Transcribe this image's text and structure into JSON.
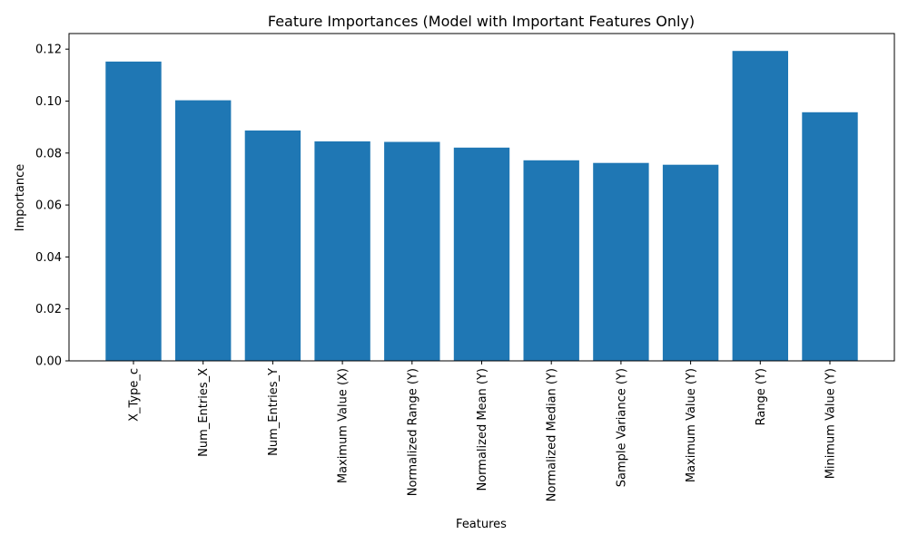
{
  "chart_data": {
    "type": "bar",
    "title": "Feature Importances (Model with Important Features Only)",
    "xlabel": "Features",
    "ylabel": "Importance",
    "categories": [
      "X_Type_c",
      "Num_Entries_X",
      "Num_Entries_Y",
      "Maximum Value (X)",
      "Normalized Range (Y)",
      "Normalized Mean (Y)",
      "Normalized Median (Y)",
      "Sample Variance (Y)",
      "Maximum Value (Y)",
      "Range (Y)",
      "Minimum Value (Y)"
    ],
    "values": [
      0.1152,
      0.1003,
      0.0887,
      0.0845,
      0.0843,
      0.0821,
      0.0772,
      0.0762,
      0.0755,
      0.1193,
      0.0957
    ],
    "ylim": [
      0,
      0.126
    ],
    "yticks": [
      "0.00",
      "0.02",
      "0.04",
      "0.06",
      "0.08",
      "0.10",
      "0.12"
    ],
    "grid": false,
    "bar_color": "#1f77b4"
  }
}
